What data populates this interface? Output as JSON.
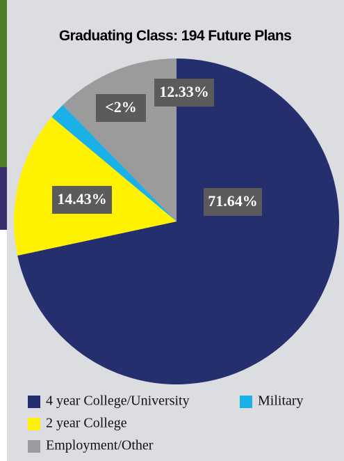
{
  "chart_data": {
    "type": "pie",
    "title": "Graduating Class: 194 Future Plans",
    "categories": [
      "4 year College/University",
      "2 year College",
      "Military",
      "Employment/Other"
    ],
    "values": [
      71.64,
      14.43,
      1.6,
      12.33
    ],
    "value_labels": [
      "71.64%",
      "14.43%",
      "<2%",
      "12.33%"
    ],
    "colors": [
      "#262f6e",
      "#fff200",
      "#1ab0e8",
      "#9b9b9b"
    ]
  }
}
